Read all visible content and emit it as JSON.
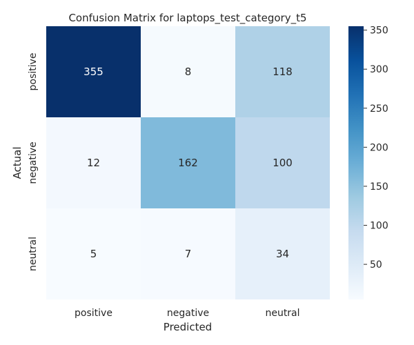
{
  "chart_data": {
    "type": "heatmap",
    "title": "Confusion Matrix for laptops_test_category_t5",
    "xlabel": "Predicted",
    "ylabel": "Actual",
    "x_categories": [
      "positive",
      "negative",
      "neutral"
    ],
    "y_categories": [
      "positive",
      "negative",
      "neutral"
    ],
    "values": [
      [
        355,
        8,
        118
      ],
      [
        12,
        162,
        100
      ],
      [
        5,
        7,
        34
      ]
    ],
    "colorbar": {
      "range": [
        5,
        355
      ],
      "ticks": [
        50,
        100,
        150,
        200,
        250,
        300,
        350
      ],
      "colormap": "Blues"
    }
  }
}
